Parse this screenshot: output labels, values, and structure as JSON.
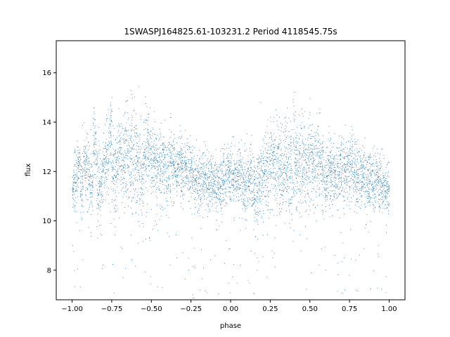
{
  "chart_data": {
    "type": "scatter",
    "title": "1SWASPJ164825.61-103231.2 Period 4118545.75s",
    "xlabel": "phase",
    "ylabel": "flux",
    "xlim": [
      -1.1,
      1.1
    ],
    "ylim": [
      6.8,
      17.3
    ],
    "x_ticks": [
      -1.0,
      -0.75,
      -0.5,
      -0.25,
      0.0,
      0.25,
      0.5,
      0.75,
      1.0
    ],
    "x_tick_labels": [
      "−1.00",
      "−0.75",
      "−0.50",
      "−0.25",
      "0.00",
      "0.25",
      "0.50",
      "0.75",
      "1.00"
    ],
    "y_ticks": [
      8,
      10,
      12,
      14,
      16
    ],
    "y_tick_labels": [
      "8",
      "10",
      "12",
      "14",
      "16"
    ],
    "grid": false,
    "legend": "none",
    "marker_color": "#1f77b4",
    "series": [
      {
        "x": [
          -1.0,
          -0.98,
          -0.96,
          -0.94,
          -0.92,
          -0.9,
          -0.88,
          -0.86,
          -0.84,
          -0.82,
          -0.8,
          -0.78,
          -0.76,
          -0.74,
          -0.72,
          -0.7,
          -0.68,
          -0.66,
          -0.64,
          -0.62,
          -0.6,
          -0.58,
          -0.56,
          -0.54,
          -0.52,
          -0.5,
          -0.48,
          -0.46,
          -0.44,
          -0.42,
          -0.4,
          -0.38,
          -0.36,
          -0.34,
          -0.32,
          -0.3,
          -0.28,
          -0.26,
          -0.24,
          -0.22,
          -0.2,
          -0.18,
          -0.16,
          -0.14,
          -0.12,
          -0.1,
          -0.08,
          -0.06,
          -0.04,
          -0.02,
          0.0,
          0.02,
          0.04,
          0.06,
          0.08,
          0.1,
          0.12,
          0.14,
          0.16,
          0.18,
          0.2,
          0.22,
          0.24,
          0.26,
          0.28,
          0.3,
          0.32,
          0.34,
          0.36,
          0.38,
          0.4,
          0.42,
          0.44,
          0.46,
          0.48,
          0.5,
          0.52,
          0.54,
          0.56,
          0.58,
          0.6,
          0.62,
          0.64,
          0.66,
          0.68,
          0.7,
          0.72,
          0.74,
          0.76,
          0.78,
          0.8,
          0.82,
          0.84,
          0.86,
          0.88,
          0.9,
          0.92,
          0.94,
          0.96,
          0.98,
          1.0
        ],
        "y": [
          11.4,
          11.8,
          12.2,
          11.6,
          12.3,
          12.0,
          11.5,
          13.0,
          11.6,
          11.2,
          12.2,
          12.6,
          13.6,
          11.8,
          12.0,
          12.8,
          12.4,
          12.9,
          12.7,
          12.4,
          12.6,
          12.2,
          12.0,
          12.6,
          13.0,
          12.3,
          12.4,
          12.1,
          12.0,
          12.4,
          12.0,
          12.5,
          12.2,
          12.2,
          12.4,
          12.1,
          12.3,
          12.0,
          11.8,
          11.6,
          11.6,
          11.6,
          11.8,
          11.5,
          11.6,
          11.5,
          11.4,
          11.4,
          11.8,
          11.8,
          11.8,
          11.8,
          11.7,
          12.0,
          11.5,
          11.5,
          11.7,
          11.4,
          10.9,
          11.6,
          11.7,
          12.0,
          12.2,
          12.4,
          12.2,
          12.3,
          12.1,
          12.3,
          12.2,
          12.0,
          12.4,
          12.4,
          12.4,
          12.6,
          12.0,
          12.6,
          12.2,
          12.5,
          12.5,
          12.0,
          11.7,
          12.2,
          12.0,
          12.0,
          11.8,
          12.0,
          12.0,
          12.2,
          12.4,
          11.9,
          11.8,
          11.8,
          11.8,
          11.6,
          11.6,
          11.5,
          11.6,
          11.5,
          11.3,
          11.3,
          11.2
        ],
        "spread": [
          0.6,
          0.9,
          0.7,
          0.8,
          0.7,
          0.9,
          0.9,
          1.0,
          1.2,
          1.0,
          0.9,
          1.2,
          0.9,
          1.2,
          1.4,
          1.1,
          1.1,
          1.2,
          1.4,
          1.4,
          1.4,
          1.3,
          1.2,
          1.2,
          1.1,
          1.0,
          1.0,
          1.1,
          1.0,
          0.9,
          0.9,
          0.9,
          0.9,
          0.9,
          0.9,
          0.9,
          0.8,
          0.8,
          0.8,
          0.8,
          0.8,
          0.8,
          0.8,
          0.8,
          0.8,
          0.8,
          0.7,
          0.8,
          0.9,
          0.8,
          0.8,
          0.8,
          0.8,
          0.9,
          0.8,
          0.9,
          0.8,
          1.0,
          1.0,
          1.0,
          1.1,
          1.1,
          1.1,
          1.2,
          1.2,
          1.2,
          1.3,
          1.3,
          1.4,
          1.4,
          1.4,
          1.3,
          1.3,
          1.2,
          1.2,
          1.2,
          1.1,
          1.0,
          1.0,
          1.0,
          1.0,
          1.0,
          1.0,
          0.9,
          0.9,
          0.9,
          0.9,
          0.9,
          0.9,
          0.9,
          0.9,
          0.9,
          0.9,
          0.9,
          0.9,
          0.8,
          0.8,
          0.8,
          0.8,
          0.7,
          0.7
        ]
      }
    ]
  }
}
